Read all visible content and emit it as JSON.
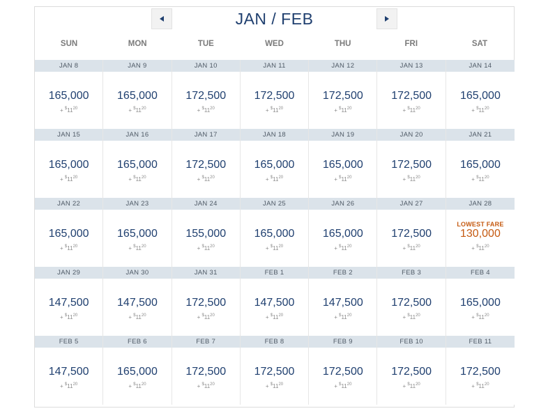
{
  "header": {
    "month_title": "JAN / FEB"
  },
  "days_of_week": [
    "SUN",
    "MON",
    "TUE",
    "WED",
    "THU",
    "FRI",
    "SAT"
  ],
  "tax": {
    "plus": "+",
    "dollar": "$",
    "whole": "11",
    "cents": "20"
  },
  "lowest_fare_label": "LOWEST FARE",
  "weeks": [
    [
      {
        "date": "JAN 8",
        "miles": "165,000"
      },
      {
        "date": "JAN 9",
        "miles": "165,000"
      },
      {
        "date": "JAN 10",
        "miles": "172,500"
      },
      {
        "date": "JAN 11",
        "miles": "172,500"
      },
      {
        "date": "JAN 12",
        "miles": "172,500"
      },
      {
        "date": "JAN 13",
        "miles": "172,500"
      },
      {
        "date": "JAN 14",
        "miles": "165,000"
      }
    ],
    [
      {
        "date": "JAN 15",
        "miles": "165,000"
      },
      {
        "date": "JAN 16",
        "miles": "165,000"
      },
      {
        "date": "JAN 17",
        "miles": "172,500"
      },
      {
        "date": "JAN 18",
        "miles": "165,000"
      },
      {
        "date": "JAN 19",
        "miles": "165,000"
      },
      {
        "date": "JAN 20",
        "miles": "172,500"
      },
      {
        "date": "JAN 21",
        "miles": "165,000"
      }
    ],
    [
      {
        "date": "JAN 22",
        "miles": "165,000"
      },
      {
        "date": "JAN 23",
        "miles": "165,000"
      },
      {
        "date": "JAN 24",
        "miles": "155,000"
      },
      {
        "date": "JAN 25",
        "miles": "165,000"
      },
      {
        "date": "JAN 26",
        "miles": "165,000"
      },
      {
        "date": "JAN 27",
        "miles": "172,500"
      },
      {
        "date": "JAN 28",
        "miles": "130,000",
        "lowest": true
      }
    ],
    [
      {
        "date": "JAN 29",
        "miles": "147,500"
      },
      {
        "date": "JAN 30",
        "miles": "147,500"
      },
      {
        "date": "JAN 31",
        "miles": "172,500"
      },
      {
        "date": "FEB 1",
        "miles": "147,500"
      },
      {
        "date": "FEB 2",
        "miles": "147,500"
      },
      {
        "date": "FEB 3",
        "miles": "172,500"
      },
      {
        "date": "FEB 4",
        "miles": "165,000"
      }
    ],
    [
      {
        "date": "FEB 5",
        "miles": "147,500"
      },
      {
        "date": "FEB 6",
        "miles": "165,000"
      },
      {
        "date": "FEB 7",
        "miles": "172,500"
      },
      {
        "date": "FEB 8",
        "miles": "172,500"
      },
      {
        "date": "FEB 9",
        "miles": "172,500"
      },
      {
        "date": "FEB 10",
        "miles": "172,500"
      },
      {
        "date": "FEB 11",
        "miles": "172,500"
      }
    ]
  ],
  "colors": {
    "primary_text": "#1f3f6f",
    "lowest_fare": "#c55a11",
    "date_bar": "#dbe3ea"
  },
  "icons": {
    "prev": "triangle-left",
    "next": "triangle-right"
  }
}
